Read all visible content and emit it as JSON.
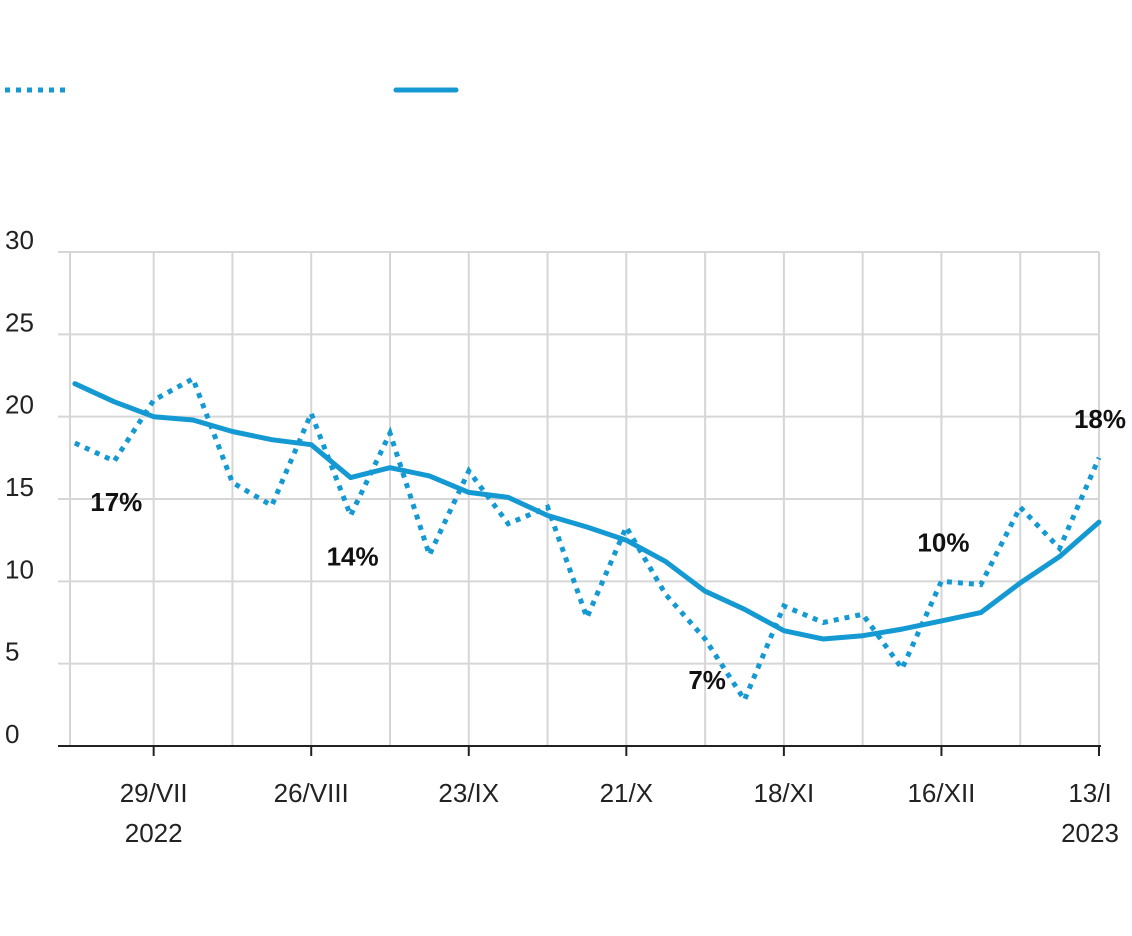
{
  "chart_data": {
    "type": "line",
    "x": [
      "2022-07-15",
      "2022-07-22",
      "2022-07-29",
      "2022-08-05",
      "2022-08-12",
      "2022-08-19",
      "2022-08-26",
      "2022-09-02",
      "2022-09-09",
      "2022-09-16",
      "2022-09-23",
      "2022-09-30",
      "2022-10-07",
      "2022-10-14",
      "2022-10-21",
      "2022-10-28",
      "2022-11-04",
      "2022-11-11",
      "2022-11-18",
      "2022-11-25",
      "2022-12-02",
      "2022-12-09",
      "2022-12-16",
      "2022-12-23",
      "2022-12-30",
      "2023-01-06",
      "2023-01-13"
    ],
    "series": [
      {
        "color": "#1499d3",
        "dash": true,
        "values": [
          18.4,
          17.3,
          21.0,
          22.3,
          16.0,
          14.6,
          20.2,
          14.0,
          19.0,
          11.6,
          16.7,
          13.5,
          14.5,
          7.8,
          13.3,
          9.2,
          6.5,
          2.8,
          8.5,
          7.5,
          8.0,
          4.7,
          10.0,
          9.8,
          14.5,
          12.0,
          17.5
        ],
        "value_labels": [
          null,
          "17%",
          null,
          null,
          null,
          null,
          null,
          "14%",
          null,
          null,
          null,
          null,
          null,
          null,
          null,
          null,
          "7%",
          null,
          null,
          null,
          null,
          null,
          "10%",
          null,
          null,
          null,
          "18%"
        ]
      },
      {
        "color": "#1499d3",
        "dash": false,
        "values": [
          22.0,
          20.9,
          20.0,
          19.8,
          19.1,
          18.6,
          18.3,
          16.3,
          16.9,
          16.4,
          15.4,
          15.1,
          14.0,
          13.3,
          12.5,
          11.2,
          9.4,
          8.3,
          7.0,
          6.5,
          6.7,
          7.1,
          7.6,
          8.1,
          9.9,
          11.5,
          13.6
        ]
      }
    ],
    "xlim": [
      "2022-07-12",
      "2023-01-13"
    ],
    "xticks": [
      {
        "value": "2022-07-29",
        "label": "29/VII\n2022"
      },
      {
        "value": "2022-08-26",
        "label": "26/VIII"
      },
      {
        "value": "2022-09-23",
        "label": "23/IX"
      },
      {
        "value": "2022-10-21",
        "label": "21/X"
      },
      {
        "value": "2022-11-18",
        "label": "18/XI"
      },
      {
        "value": "2022-12-16",
        "label": "16/XII"
      },
      {
        "value": "2023-01-13",
        "label": "13/I\n2023"
      }
    ],
    "xminorticks": [
      "2022-08-12",
      "2022-09-09",
      "2022-10-07",
      "2022-11-04",
      "2022-12-02",
      "2022-12-30"
    ],
    "ylim": [
      0,
      30
    ],
    "yticks": [
      0,
      5,
      10,
      15,
      20,
      25,
      30
    ],
    "grid": true
  }
}
